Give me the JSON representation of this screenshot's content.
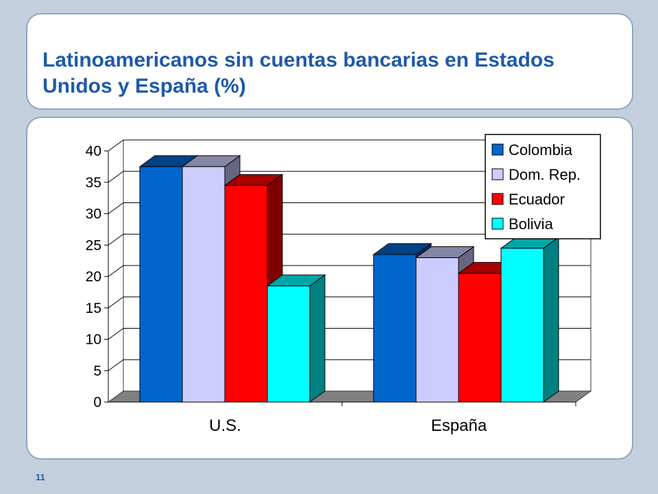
{
  "slide": {
    "title": "Latinoamericanos sin cuentas bancarias en Estados Unidos y España (%)",
    "number": "11"
  },
  "chart_data": {
    "type": "bar",
    "style": "3d-clustered",
    "categories": [
      "U.S.",
      "España"
    ],
    "series": [
      {
        "name": "Colombia",
        "values": [
          37.5,
          23.5
        ],
        "color": "#0066cc"
      },
      {
        "name": "Dom. Rep.",
        "values": [
          37.5,
          23
        ],
        "color": "#ccccff"
      },
      {
        "name": "Ecuador",
        "values": [
          34.5,
          20.5
        ],
        "color": "#ff0000"
      },
      {
        "name": "Bolivia",
        "values": [
          18.5,
          24.5
        ],
        "color": "#00ffff"
      }
    ],
    "ylim": [
      0,
      40
    ],
    "yticks": [
      "0",
      "5",
      "10",
      "15",
      "20",
      "25",
      "30",
      "35",
      "40"
    ],
    "grid": true,
    "legend": "top-right"
  }
}
